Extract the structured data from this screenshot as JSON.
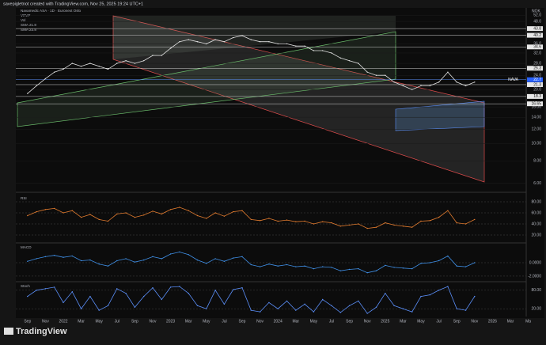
{
  "header": "savepigletnot created with TradingView.com, Nov 25, 2025 19:24 UTC+1",
  "legend": [
    "Navamedic ASA · 1D · Euronext Oslo",
    "VRVP",
    "Vol",
    "SMA 21.8",
    "SMA 23.8"
  ],
  "currency": "NOK",
  "ticker_tag": "NAVA",
  "brand": "TradingView",
  "chart_data": {
    "type": "line",
    "log_scale": true,
    "color": "#e0e0e0",
    "x_labels": [
      "Sep",
      "Nov",
      "2022",
      "Mar",
      "May",
      "Jul",
      "Sep",
      "Nov",
      "2023",
      "Mar",
      "May",
      "Jul",
      "Sep",
      "Nov",
      "2024",
      "Mar",
      "May",
      "Jul",
      "Sep",
      "Nov",
      "2025",
      "Mar",
      "May",
      "Jul",
      "Sep",
      "Nov",
      "2026",
      "Mar",
      "Ma"
    ],
    "values": [
      19,
      21,
      23,
      25,
      26,
      28,
      27,
      28,
      27,
      26,
      28,
      29,
      28,
      29,
      31,
      31,
      34,
      37,
      38,
      37,
      36,
      38,
      37,
      39,
      40,
      38,
      37,
      37,
      36,
      36,
      35,
      35,
      33,
      33,
      32,
      30,
      29,
      28,
      25,
      24,
      24,
      22,
      21,
      20,
      21,
      21,
      22,
      25,
      22,
      21,
      22
    ],
    "ylim": [
      5.5,
      56
    ],
    "yticks": [
      {
        "value": 6,
        "label": "6.00"
      },
      {
        "value": 8,
        "label": "8.00"
      },
      {
        "value": 10,
        "label": "10.00"
      },
      {
        "value": 12,
        "label": "12.00"
      },
      {
        "value": 14,
        "label": "14.00"
      },
      {
        "value": 16,
        "label": "16.00"
      },
      {
        "value": 20,
        "label": "20.0"
      },
      {
        "value": 24,
        "label": "24.0"
      },
      {
        "value": 28,
        "label": "28.0"
      },
      {
        "value": 32,
        "label": "32.0"
      },
      {
        "value": 36,
        "label": "36.0"
      },
      {
        "value": 40,
        "label": "40.0"
      },
      {
        "value": 44,
        "label": "44.0"
      },
      {
        "value": 48,
        "label": "48.0"
      },
      {
        "value": 52,
        "label": "52.0"
      }
    ],
    "levels": [
      43.8,
      40.2,
      34.6,
      26.3,
      22.7,
      21.3,
      18.3,
      16.65
    ],
    "panels": [
      {
        "name": "RSI",
        "color": "#e07a2e",
        "ylim": [
          10,
          90
        ],
        "yticks": [
          {
            "value": 80,
            "label": "80.00"
          },
          {
            "value": 60,
            "label": "60.00"
          },
          {
            "value": 40,
            "label": "40.00"
          },
          {
            "value": 20,
            "label": "20.00"
          }
        ],
        "values": [
          55,
          62,
          66,
          68,
          60,
          64,
          52,
          57,
          48,
          45,
          58,
          60,
          52,
          56,
          63,
          58,
          66,
          70,
          64,
          55,
          50,
          60,
          54,
          62,
          64,
          48,
          46,
          50,
          45,
          47,
          44,
          45,
          40,
          44,
          42,
          36,
          38,
          40,
          32,
          34,
          42,
          38,
          36,
          34,
          45,
          46,
          52,
          64,
          42,
          40,
          48
        ]
      },
      {
        "name": "MACD",
        "color": "#3f8fe6",
        "ylim": [
          -2.6,
          2.6
        ],
        "yticks": [
          {
            "value": 0,
            "label": "0.0000"
          },
          {
            "value": -2,
            "label": "-2.0000"
          }
        ],
        "values": [
          0.2,
          0.6,
          0.9,
          1.1,
          0.8,
          1.0,
          0.3,
          0.4,
          -0.2,
          -0.5,
          0.3,
          0.6,
          0.1,
          0.4,
          0.9,
          0.6,
          1.3,
          1.6,
          1.2,
          0.4,
          -0.1,
          0.6,
          0.2,
          0.7,
          0.9,
          -0.3,
          -0.6,
          -0.2,
          -0.5,
          -0.3,
          -0.6,
          -0.5,
          -0.9,
          -0.6,
          -0.7,
          -1.2,
          -1.0,
          -0.9,
          -1.5,
          -1.2,
          -0.4,
          -0.7,
          -0.8,
          -0.9,
          -0.1,
          0.0,
          0.3,
          1.0,
          -0.5,
          -0.6,
          0.0
        ]
      },
      {
        "name": "Stoch",
        "color": "#5b8ff9",
        "ylim": [
          0,
          100
        ],
        "yticks": [
          {
            "value": 80,
            "label": "80.00"
          },
          {
            "value": 20,
            "label": "20.00"
          }
        ],
        "values": [
          60,
          80,
          85,
          90,
          40,
          75,
          20,
          60,
          15,
          30,
          85,
          70,
          25,
          60,
          88,
          50,
          90,
          92,
          70,
          30,
          20,
          80,
          35,
          82,
          88,
          15,
          10,
          40,
          20,
          45,
          15,
          35,
          10,
          50,
          30,
          8,
          30,
          45,
          5,
          25,
          70,
          30,
          20,
          10,
          60,
          65,
          80,
          92,
          20,
          15,
          60
        ]
      }
    ]
  }
}
